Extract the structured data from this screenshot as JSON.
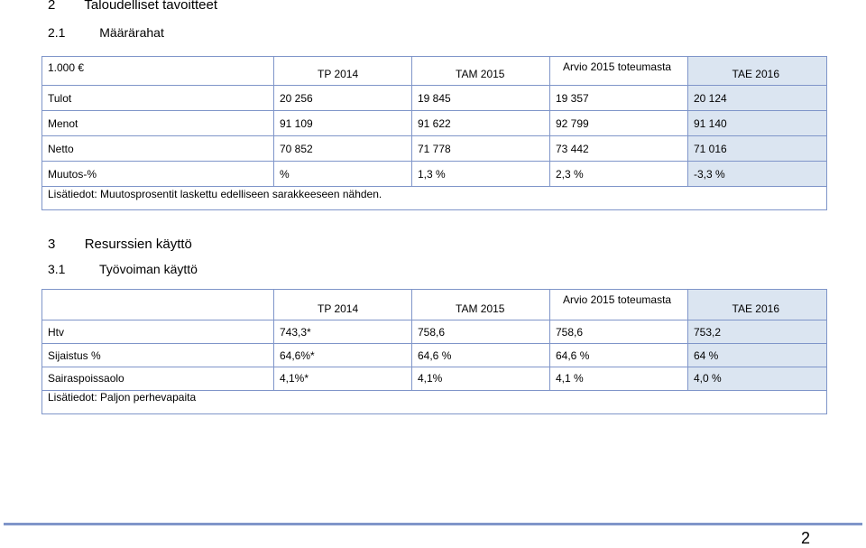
{
  "sections": {
    "s2": {
      "num": "2",
      "title": "Taloudelliset tavoitteet"
    },
    "s21": {
      "num": "2.1",
      "title": "Määrärahat"
    },
    "s3": {
      "num": "3",
      "title": "Resurssien käyttö"
    },
    "s31": {
      "num": "3.1",
      "title": "Työvoiman käyttö"
    }
  },
  "table1": {
    "corner": "1.000 €",
    "headers": [
      "TP 2014",
      "TAM 2015",
      "Arvio 2015 toteumasta",
      "TAE 2016"
    ],
    "rows": [
      {
        "label": "Tulot",
        "values": [
          "20 256",
          "19 845",
          "19 357",
          "20 124"
        ]
      },
      {
        "label": "Menot",
        "values": [
          "91 109",
          "91 622",
          "92 799",
          "91 140"
        ]
      },
      {
        "label": "Netto",
        "values": [
          "70 852",
          "71 778",
          "73 442",
          "71 016"
        ]
      },
      {
        "label": "Muutos-%",
        "values": [
          "%",
          "1,3 %",
          "2,3 %",
          "-3,3 %"
        ]
      }
    ],
    "note": "Lisätiedot: Muutosprosentit laskettu edelliseen sarakkeeseen nähden."
  },
  "table2": {
    "corner": "",
    "headers": [
      "TP 2014",
      "TAM 2015",
      "Arvio 2015 toteumasta",
      "TAE 2016"
    ],
    "rows": [
      {
        "label": "Htv",
        "values": [
          "743,3*",
          "758,6",
          "758,6",
          "753,2"
        ]
      },
      {
        "label": "Sijaistus %",
        "values": [
          "64,6%*",
          "64,6 %",
          "64,6 %",
          "64 %"
        ]
      },
      {
        "label": "Sairaspoissaolo",
        "values": [
          "4,1%*",
          "4,1%",
          "4,1 %",
          "4,0 %"
        ]
      }
    ],
    "note": "Lisätiedot: Paljon perhevapaita"
  },
  "footer": {
    "page_number": "2"
  }
}
